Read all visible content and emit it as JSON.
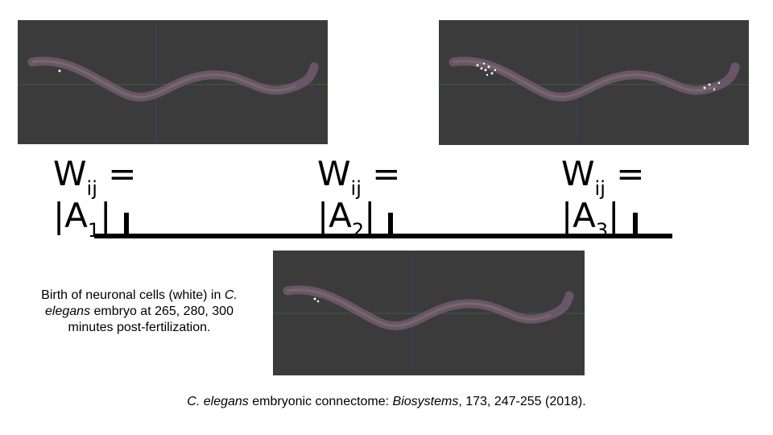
{
  "equations": [
    {
      "w": "W",
      "w_sub": "ij",
      "eq": " =",
      "a_open": "|A",
      "a_sub": "1",
      "a_close": "|"
    },
    {
      "w": "W",
      "w_sub": "ij",
      "eq": " =",
      "a_open": "|A",
      "a_sub": "2",
      "a_close": "|"
    },
    {
      "w": "W",
      "w_sub": "ij",
      "eq": " =",
      "a_open": "|A",
      "a_sub": "3",
      "a_close": "|"
    }
  ],
  "caption": {
    "part1": "Birth of neuronal cells (white) in ",
    "italic1": "C. elegans",
    "part2": " embryo at 265, 280, 300 minutes post-fertilization."
  },
  "citation": {
    "italic1": "C. elegans",
    "part1": " embryonic connectome: ",
    "italic2": "Biosystems",
    "part2": ", 173, 247-255 (2018)."
  },
  "colors": {
    "panel_bg": "#3b3b3b",
    "worm": "#6e5a6e",
    "neuron_dots": "#ffffff"
  }
}
